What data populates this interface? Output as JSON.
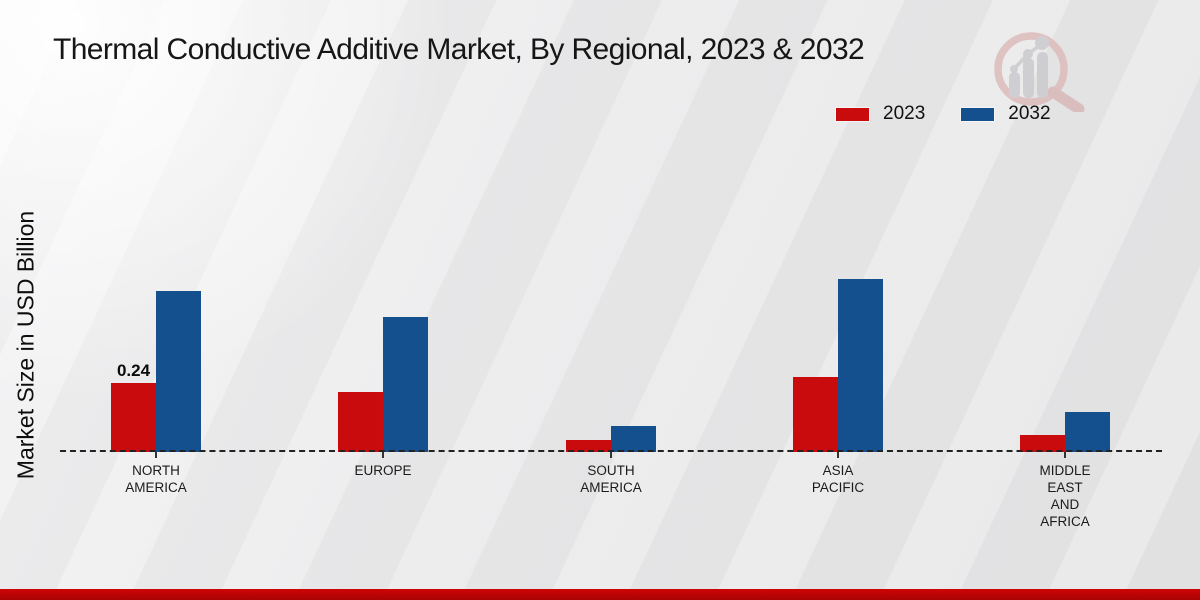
{
  "chart_data": {
    "type": "bar",
    "title": "Thermal Conductive Additive Market, By Regional, 2023 & 2032",
    "xlabel": "",
    "ylabel": "Market Size in USD Billion",
    "categories": [
      "NORTH AMERICA",
      "EUROPE",
      "SOUTH AMERICA",
      "ASIA PACIFIC",
      "MIDDLE EAST AND AFRICA"
    ],
    "category_label_lines": [
      [
        "NORTH",
        "AMERICA"
      ],
      [
        "EUROPE"
      ],
      [
        "SOUTH",
        "AMERICA"
      ],
      [
        "ASIA",
        "PACIFIC"
      ],
      [
        "MIDDLE",
        "EAST",
        "AND",
        "AFRICA"
      ]
    ],
    "series": [
      {
        "name": "2023",
        "color": "#c90b0e",
        "values": [
          0.24,
          0.21,
          0.04,
          0.26,
          0.06
        ],
        "point_labels": [
          "0.24",
          "",
          "",
          "",
          ""
        ]
      },
      {
        "name": "2032",
        "color": "#14508e",
        "values": [
          0.56,
          0.47,
          0.09,
          0.6,
          0.14
        ],
        "point_labels": [
          "",
          "",
          "",
          "",
          ""
        ]
      }
    ],
    "ylim": [
      0,
      0.66
    ],
    "grid": false,
    "y_axis_visible": false,
    "baseline_style": "dashed",
    "legend_position": "top-right",
    "units": "USD Billion"
  },
  "legend": {
    "items": [
      {
        "label": "2023",
        "color": "#c90b0e"
      },
      {
        "label": "2032",
        "color": "#14508e"
      }
    ]
  },
  "watermark": {
    "name": "market-research-magnifier-logo",
    "ring_color": "#dcb9b9",
    "bars_color": "#c9c9cd"
  },
  "footer": {
    "accent_color": "#bd0405"
  }
}
